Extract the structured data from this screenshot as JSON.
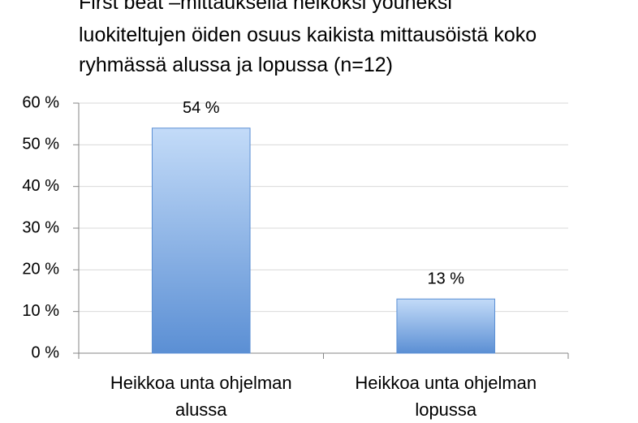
{
  "chart_data": {
    "type": "bar",
    "title": [
      "First beat –mittauksella heikoksi yöuneksi",
      "luokiteltujen öiden osuus kaikista mittausöistä koko",
      "ryhmässä alussa ja lopussa (n=12)"
    ],
    "categories": [
      "Heikkoa unta ohjelman alussa",
      "Heikkoa unta ohjelman lopussa"
    ],
    "values": [
      54,
      13
    ],
    "value_labels": [
      "54 %",
      "13 %"
    ],
    "color": "#5b8fd4",
    "ylim": [
      0,
      60
    ],
    "yticks": [
      {
        "value": 0,
        "label": "0 %"
      },
      {
        "value": 10,
        "label": "10 %"
      },
      {
        "value": 20,
        "label": "20 %"
      },
      {
        "value": 30,
        "label": "30 %"
      },
      {
        "value": 40,
        "label": "40 %"
      },
      {
        "value": 50,
        "label": "50 %"
      },
      {
        "value": 60,
        "label": "60 %"
      }
    ],
    "grid": true
  }
}
